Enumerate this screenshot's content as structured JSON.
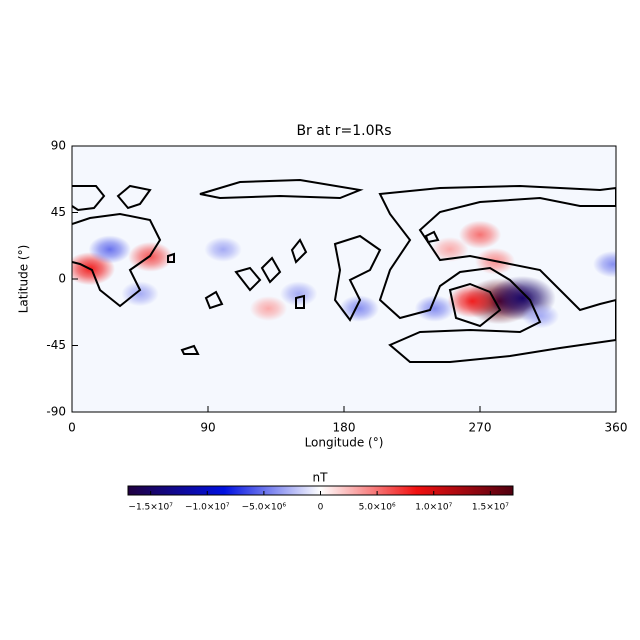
{
  "chart_data": {
    "type": "heatmap",
    "title": "Br at r=1.0Rs",
    "xlabel": "Longitude (°)",
    "ylabel": "Latitude (°)",
    "xlim": [
      0,
      360
    ],
    "xticks": [
      0,
      90,
      180,
      270,
      360
    ],
    "ylim": [
      -90,
      90
    ],
    "yticks": [
      -90,
      -45,
      0,
      45,
      90
    ],
    "x": [
      283,
      298,
      265,
      12,
      52,
      25,
      270,
      280,
      240,
      310,
      190,
      100,
      150,
      358,
      45,
      130,
      250
    ],
    "y": [
      -15,
      -13,
      -15,
      7,
      15,
      20,
      30,
      12,
      -20,
      -25,
      -20,
      20,
      -10,
      10,
      -10,
      -20,
      20
    ],
    "values": [
      16000000,
      -15000000,
      8000000,
      8000000,
      6000000,
      -5000000,
      5000000,
      4000000,
      -4000000,
      -3000000,
      -4000000,
      -3000000,
      -3000000,
      -4000000,
      -3000000,
      3000000,
      3000000
    ],
    "colorbar": {
      "label": "nT",
      "lim": [
        -17000000,
        17000000
      ],
      "ticks": [
        {
          "value": -15000000,
          "label": "−1.5×10⁷"
        },
        {
          "value": -10000000,
          "label": "−1.0×10⁷"
        },
        {
          "value": -5000000,
          "label": "−5.0×10⁶"
        },
        0,
        {
          "value": 5000000,
          "label": "5.0×10⁶"
        },
        {
          "value": 10000000,
          "label": "1.0×10⁷"
        },
        {
          "value": 15000000,
          "label": "1.5×10⁷"
        }
      ]
    }
  }
}
